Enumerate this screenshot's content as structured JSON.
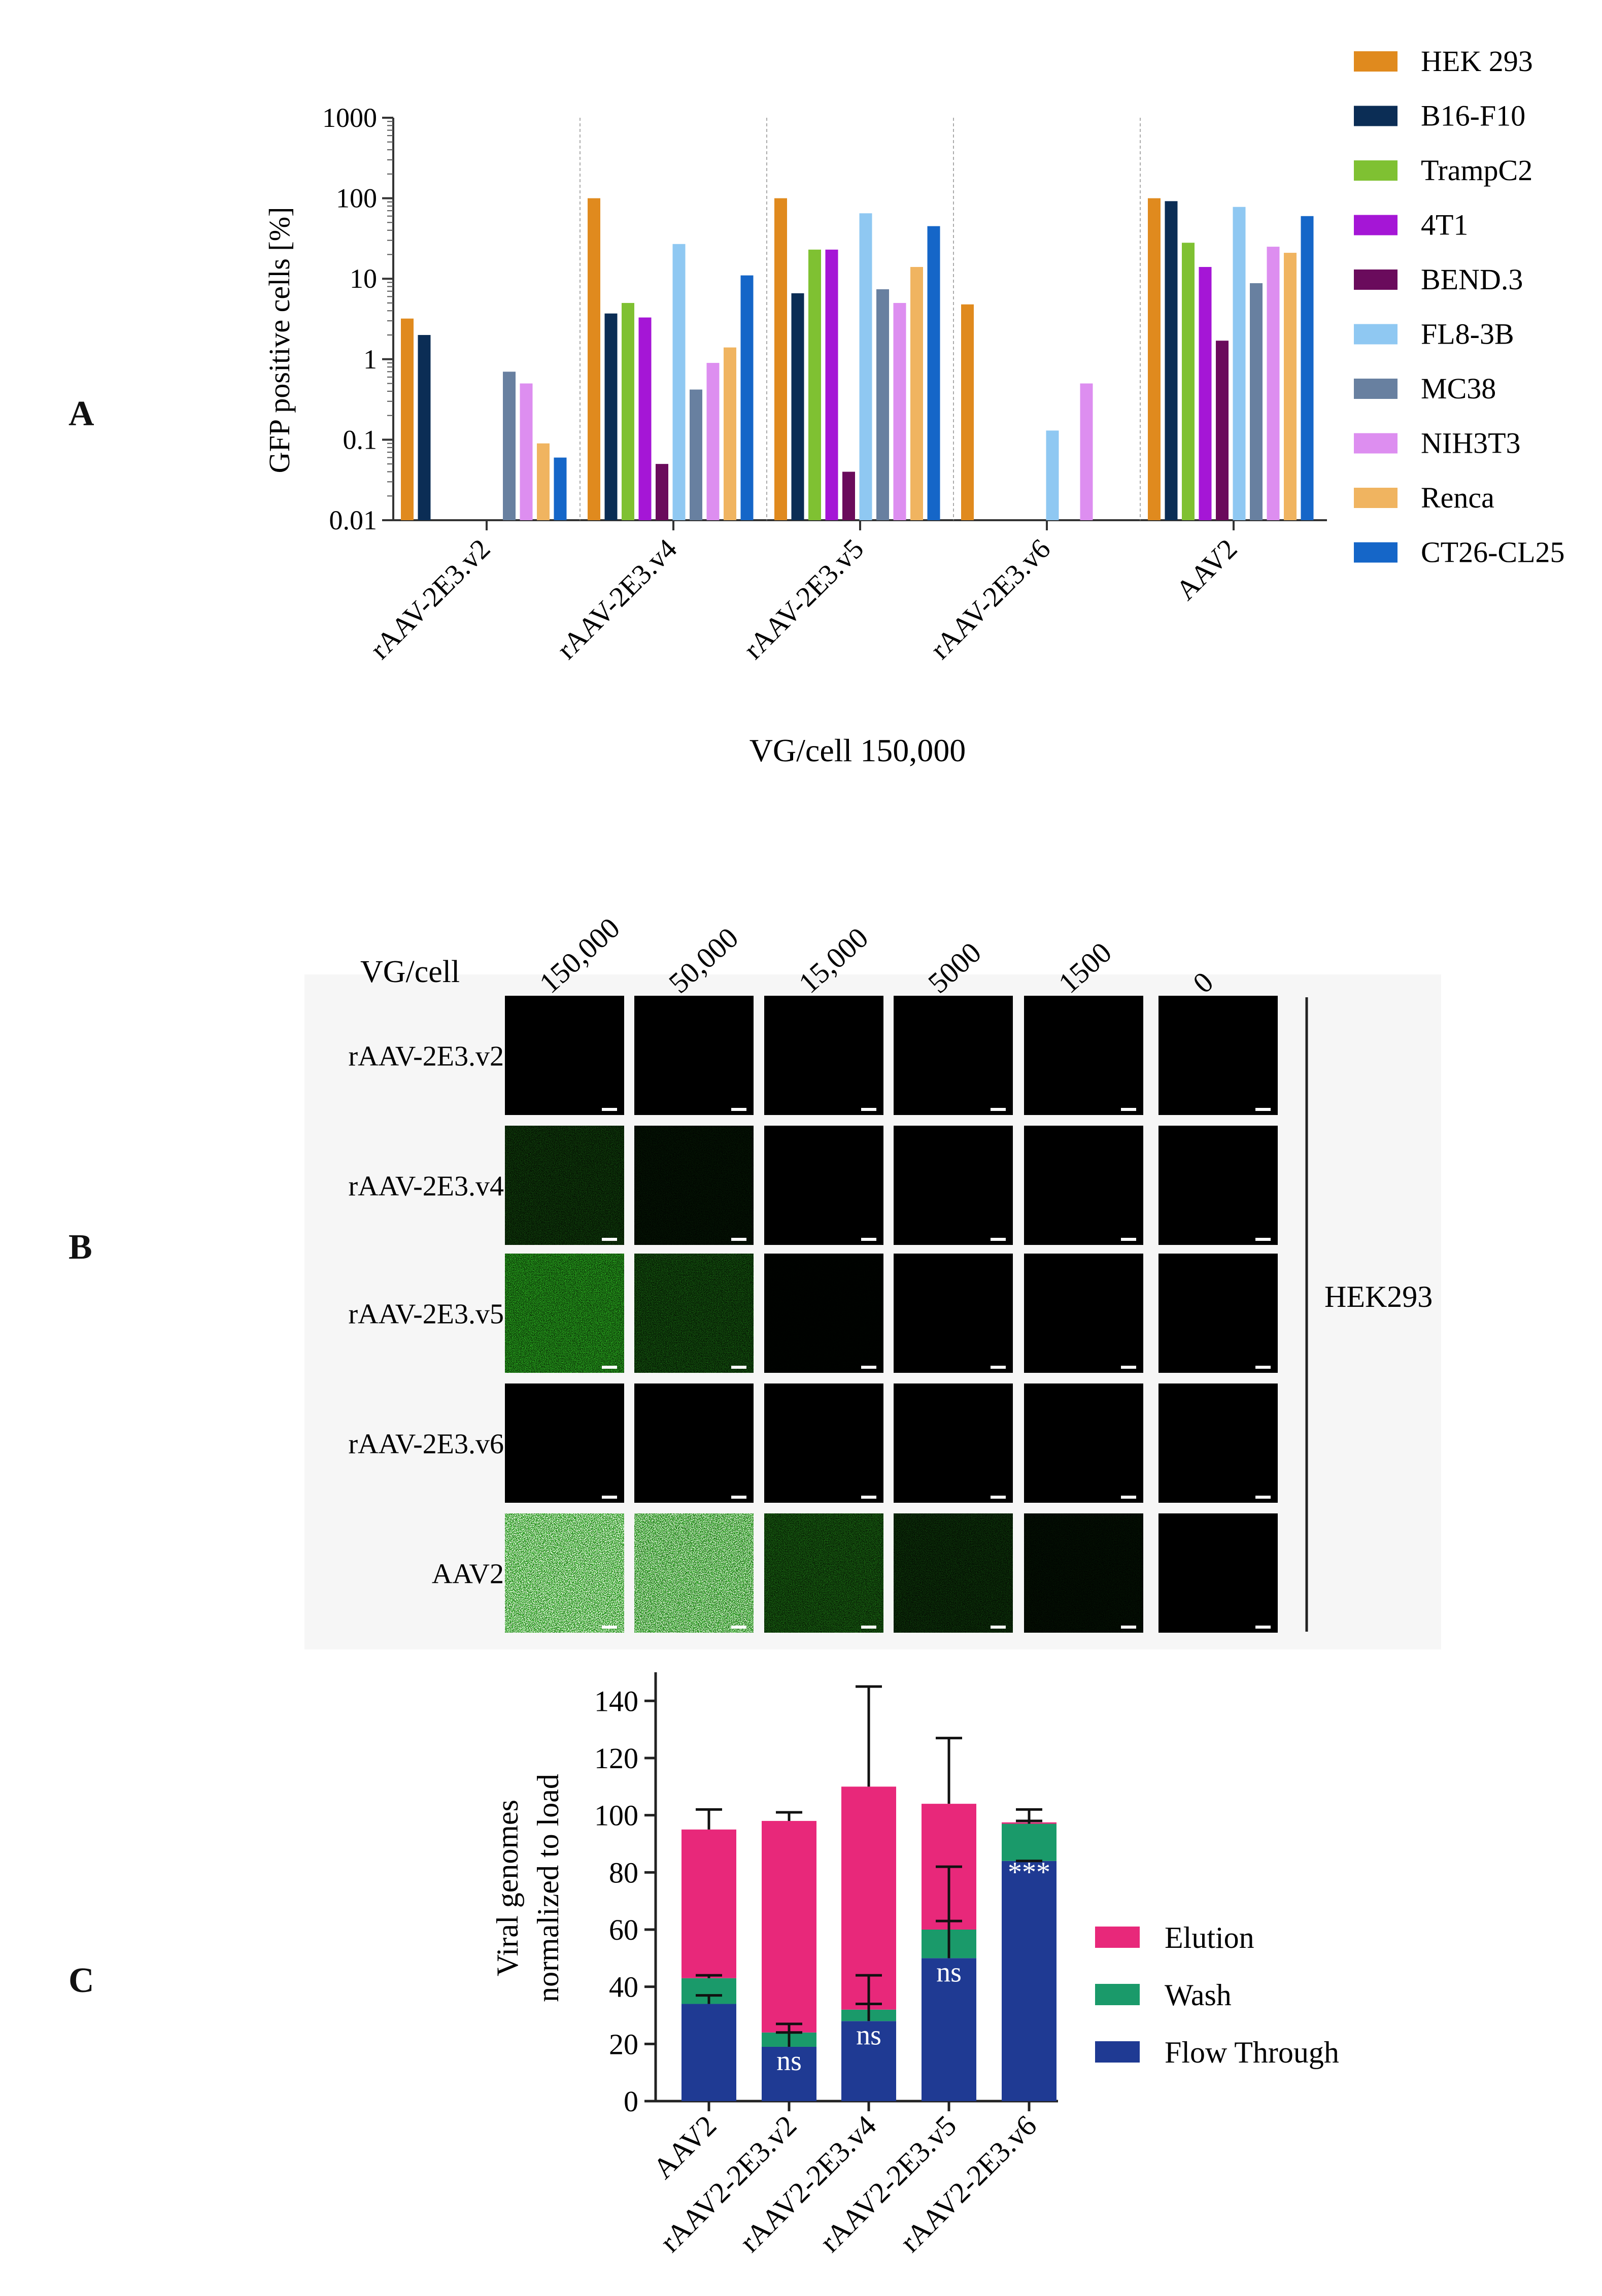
{
  "panels": {
    "a": "A",
    "b": "B",
    "c": "C"
  },
  "chart_data": [
    {
      "type": "bar",
      "panel": "A",
      "title": "",
      "xlabel": "VG/cell 150,000",
      "ylabel": "GFP positive cells [%]",
      "yscale": "log",
      "ylim": [
        0.01,
        1000
      ],
      "yticks": [
        "1000",
        "100",
        "10",
        "1",
        "0.1",
        "0.01"
      ],
      "categories": [
        "rAAV-2E3.v2",
        "rAAV-2E3.v4",
        "rAAV-2E3.v5",
        "rAAV-2E3.v6",
        "AAV2"
      ],
      "legend_position": "right",
      "series": [
        {
          "name": "HEK 293",
          "color": "#e08a1e",
          "values": [
            3.2,
            100,
            100,
            4.8,
            100
          ]
        },
        {
          "name": "B16-F10",
          "color": "#0b2d55",
          "values": [
            2.0,
            3.7,
            6.6,
            null,
            92
          ]
        },
        {
          "name": "TrampC2",
          "color": "#7fc132",
          "values": [
            null,
            5.0,
            23,
            null,
            28
          ]
        },
        {
          "name": "4T1",
          "color": "#a516d6",
          "values": [
            null,
            3.3,
            23,
            null,
            14
          ]
        },
        {
          "name": "BEND.3",
          "color": "#6a0b5c",
          "values": [
            null,
            0.05,
            0.04,
            null,
            1.7
          ]
        },
        {
          "name": "FL8-3B",
          "color": "#8fc8f2",
          "values": [
            null,
            27,
            65,
            0.13,
            78
          ]
        },
        {
          "name": "MC38",
          "color": "#6880a0",
          "values": [
            0.7,
            0.42,
            7.4,
            null,
            8.8
          ]
        },
        {
          "name": "NIH3T3",
          "color": "#dd8ef0",
          "values": [
            0.5,
            0.9,
            5.0,
            0.5,
            25
          ]
        },
        {
          "name": "Renca",
          "color": "#f0b460",
          "values": [
            0.09,
            1.4,
            14,
            null,
            21
          ]
        },
        {
          "name": "CT26-CL25",
          "color": "#1566c8",
          "values": [
            0.06,
            11,
            45,
            null,
            60
          ]
        }
      ]
    },
    {
      "type": "bar",
      "stacked": true,
      "panel": "C",
      "title": "",
      "xlabel": "",
      "ylabel_lines": [
        "Viral genomes",
        "normalized to load"
      ],
      "ylim": [
        0,
        150
      ],
      "yticks": [
        "0",
        "20",
        "40",
        "60",
        "80",
        "100",
        "120",
        "140"
      ],
      "categories": [
        "AAV2",
        "rAAV2-2E3.v2",
        "rAAV2-2E3.v4",
        "rAAV2-2E3.v5",
        "rAAV2-2E3.v6"
      ],
      "legend_position": "right",
      "series": [
        {
          "name": "Flow Through",
          "color": "#1f3a93",
          "values": [
            34,
            19,
            28,
            50,
            84
          ]
        },
        {
          "name": "Wash",
          "color": "#1a9a6a",
          "values": [
            9,
            5,
            4,
            10,
            13
          ]
        },
        {
          "name": "Elution",
          "color": "#e8287a",
          "values": [
            52,
            74,
            78,
            44,
            0.5
          ]
        }
      ],
      "error_bars": {
        "total": [
          102,
          101,
          145,
          127,
          102
        ],
        "wash_top": [
          44,
          27,
          44,
          82,
          98
        ],
        "flow_top": [
          37,
          24,
          34,
          63,
          84
        ]
      },
      "annotations": [
        "",
        "ns",
        "ns",
        "ns",
        "***"
      ]
    }
  ],
  "panel_b": {
    "header": "VG/cell",
    "doses": [
      "150,000",
      "50,000",
      "15,000",
      "5000",
      "1500",
      "0"
    ],
    "rows": [
      "rAAV-2E3.v2",
      "rAAV-2E3.v4",
      "rAAV-2E3.v5",
      "rAAV-2E3.v6",
      "AAV2"
    ],
    "cell_line": "HEK293",
    "intensity": [
      [
        0,
        0,
        0,
        0,
        0,
        0
      ],
      [
        0.18,
        0.06,
        0,
        0,
        0,
        0
      ],
      [
        0.55,
        0.25,
        0.01,
        0,
        0,
        0
      ],
      [
        0,
        0,
        0,
        0,
        0,
        0
      ],
      [
        1.0,
        0.9,
        0.3,
        0.15,
        0.05,
        0
      ]
    ]
  }
}
